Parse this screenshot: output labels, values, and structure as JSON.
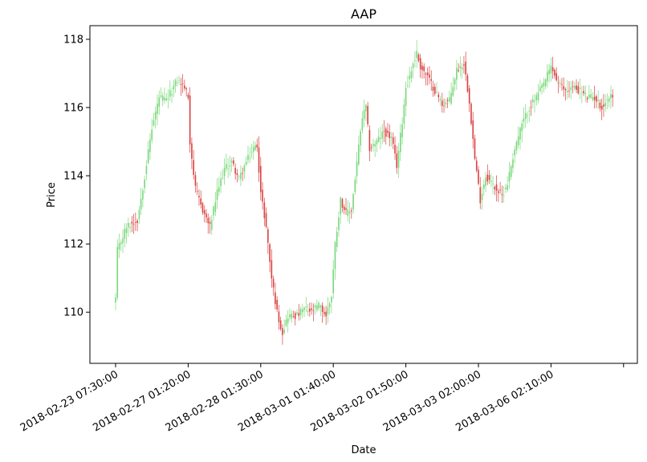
{
  "chart_data": {
    "type": "candlestick",
    "title": "AAP",
    "xlabel": "Date",
    "ylabel": "Price",
    "ylim": [
      108.5,
      118.4
    ],
    "yticks": [
      110,
      112,
      114,
      116,
      118
    ],
    "xticks": [
      "2018-02-23 07:30:00",
      "2018-02-27 01:20:00",
      "2018-02-28 01:30:00",
      "2018-03-01 01:40:00",
      "2018-03-02 01:50:00",
      "2018-03-03 02:00:00",
      "2018-03-06 02:10:00",
      ""
    ],
    "tick_interval_bars": 40,
    "colors": {
      "up": "#77d879",
      "down": "#db3f3f"
    },
    "close_path": [
      [
        0,
        110.4
      ],
      [
        1,
        111.8
      ],
      [
        6,
        112.5
      ],
      [
        12,
        112.7
      ],
      [
        16,
        114.0
      ],
      [
        20,
        115.4
      ],
      [
        24,
        116.3
      ],
      [
        28,
        116.2
      ],
      [
        34,
        116.8
      ],
      [
        38,
        116.6
      ],
      [
        40,
        116.3
      ],
      [
        41,
        115.0
      ],
      [
        44,
        113.6
      ],
      [
        48,
        113.0
      ],
      [
        52,
        112.5
      ],
      [
        56,
        113.5
      ],
      [
        60,
        114.2
      ],
      [
        64,
        114.4
      ],
      [
        68,
        113.9
      ],
      [
        72,
        114.4
      ],
      [
        76,
        114.8
      ],
      [
        78,
        114.9
      ],
      [
        80,
        113.5
      ],
      [
        83,
        112.5
      ],
      [
        86,
        111.0
      ],
      [
        89,
        110.0
      ],
      [
        92,
        109.4
      ],
      [
        95,
        109.9
      ],
      [
        100,
        109.9
      ],
      [
        104,
        110.1
      ],
      [
        108,
        110.0
      ],
      [
        112,
        110.2
      ],
      [
        116,
        109.9
      ],
      [
        119,
        110.5
      ],
      [
        121,
        112.0
      ],
      [
        124,
        113.3
      ],
      [
        127,
        112.9
      ],
      [
        130,
        113.0
      ],
      [
        133,
        114.4
      ],
      [
        136,
        115.7
      ],
      [
        138,
        116.0
      ],
      [
        140,
        114.8
      ],
      [
        144,
        115.0
      ],
      [
        148,
        115.3
      ],
      [
        152,
        115.1
      ],
      [
        155,
        114.3
      ],
      [
        158,
        115.6
      ],
      [
        160,
        116.6
      ],
      [
        162,
        116.9
      ],
      [
        164,
        117.3
      ],
      [
        166,
        117.6
      ],
      [
        168,
        117.2
      ],
      [
        172,
        116.9
      ],
      [
        176,
        116.5
      ],
      [
        180,
        116.1
      ],
      [
        184,
        116.2
      ],
      [
        188,
        117.1
      ],
      [
        192,
        117.3
      ],
      [
        195,
        116.2
      ],
      [
        198,
        114.5
      ],
      [
        201,
        113.3
      ],
      [
        204,
        114.0
      ],
      [
        207,
        113.8
      ],
      [
        210,
        113.6
      ],
      [
        213,
        113.4
      ],
      [
        216,
        113.8
      ],
      [
        220,
        114.8
      ],
      [
        224,
        115.5
      ],
      [
        228,
        116.0
      ],
      [
        232,
        116.3
      ],
      [
        236,
        116.7
      ],
      [
        240,
        117.2
      ],
      [
        244,
        116.7
      ],
      [
        248,
        116.5
      ],
      [
        252,
        116.6
      ],
      [
        256,
        116.5
      ],
      [
        260,
        116.3
      ],
      [
        264,
        116.3
      ],
      [
        268,
        116.0
      ],
      [
        272,
        116.3
      ],
      [
        274,
        116.4
      ]
    ]
  }
}
